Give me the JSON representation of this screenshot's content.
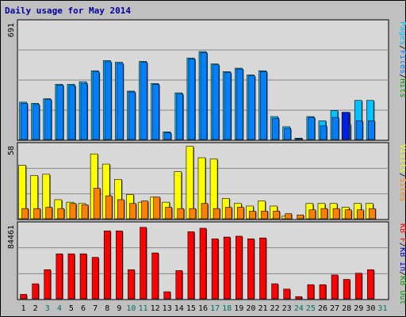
{
  "chart_data": {
    "type": "bar",
    "title": "Daily usage for May 2014",
    "colors": {
      "pages": "#0020e0",
      "files": "#0080ff",
      "hits": "#00c0ff",
      "visits": "#ffff00",
      "sites": "#ff8000",
      "kbin": "#0000cc",
      "kbout": "#00a000",
      "kbf": "#ff0000",
      "weekend": "#007060",
      "weekday": "#000000",
      "panel": "#c0c0c0",
      "bg": "#d8d8d8",
      "title": "#0000a0"
    },
    "days": [
      "1",
      "2",
      "3",
      "4",
      "5",
      "6",
      "7",
      "8",
      "9",
      "10",
      "11",
      "12",
      "13",
      "14",
      "15",
      "16",
      "17",
      "18",
      "19",
      "20",
      "21",
      "22",
      "23",
      "24",
      "25",
      "26",
      "27",
      "28",
      "29",
      "30",
      "31"
    ],
    "weekend_days": [
      "3",
      "4",
      "10",
      "11",
      "17",
      "18",
      "24",
      "25",
      "31"
    ],
    "panels": [
      {
        "id": "hits",
        "max_label": "691",
        "ymax": 691,
        "legend": [
          {
            "text": "Pages",
            "color_key": "hits"
          },
          {
            "text": "/",
            "color_key": "weekday"
          },
          {
            "text": "Files",
            "color_key": "files"
          },
          {
            "text": "/",
            "color_key": "weekday"
          },
          {
            "text": "Hits",
            "color_key": "kbout"
          }
        ],
        "series": [
          {
            "name": "Hits",
            "color_key": "hits",
            "values": [
              220,
              213,
              240,
              325,
              325,
              340,
              405,
              465,
              455,
              285,
              460,
              330,
              45,
              275,
              480,
              518,
              445,
              400,
              420,
              380,
              405,
              135,
              75,
              8,
              135,
              110,
              170,
              160,
              230,
              230,
              0
            ]
          },
          {
            "name": "Files",
            "color_key": "files",
            "values": [
              213,
              206,
              235,
              320,
              318,
              330,
              398,
              458,
              448,
              280,
              455,
              325,
              40,
              268,
              475,
              512,
              440,
              395,
              415,
              375,
              400,
              125,
              65,
              4,
              130,
              80,
              130,
              90,
              110,
              110,
              0
            ]
          },
          {
            "name": "Pages",
            "color_key": "pages",
            "values": [
              0,
              0,
              0,
              0,
              0,
              0,
              0,
              0,
              0,
              0,
              0,
              0,
              0,
              0,
              0,
              0,
              0,
              0,
              0,
              0,
              0,
              0,
              0,
              0,
              0,
              0,
              0,
              160,
              0,
              0,
              0
            ]
          }
        ]
      },
      {
        "id": "visits",
        "max_label": "58",
        "ymax": 58,
        "legend": [
          {
            "text": "Visits",
            "color_key": "visits"
          },
          {
            "text": "/",
            "color_key": "weekday"
          },
          {
            "text": "Sites",
            "color_key": "sites"
          }
        ],
        "series": [
          {
            "name": "Visits",
            "color_key": "visits",
            "values": [
              42,
              34,
              35,
              15,
              13,
              12,
              51,
              43,
              31,
              19,
              13,
              17,
              13,
              37,
              57,
              48,
              47,
              16,
              12,
              10,
              14,
              10,
              2,
              0,
              12,
              12,
              12,
              9,
              12,
              12,
              0
            ]
          },
          {
            "name": "Sites",
            "color_key": "sites",
            "values": [
              8,
              8,
              9,
              8,
              12,
              11,
              24,
              18,
              15,
              12,
              14,
              17,
              9,
              8,
              8,
              12,
              8,
              9,
              9,
              6,
              6,
              6,
              4,
              3,
              7,
              8,
              8,
              7,
              7,
              8,
              0
            ]
          }
        ]
      },
      {
        "id": "kbytes",
        "max_label": "84461",
        "ymax": 84461,
        "legend": [
          {
            "text": "KB F",
            "color_key": "kbf"
          },
          {
            "text": "/",
            "color_key": "weekday"
          },
          {
            "text": "KB In",
            "color_key": "kbin"
          },
          {
            "text": "/",
            "color_key": "weekday"
          },
          {
            "text": "KB Out",
            "color_key": "kbout"
          }
        ],
        "series": [
          {
            "name": "KB F",
            "color_key": "kbf",
            "values": [
              5000,
              17000,
              33000,
              51000,
              51000,
              51000,
              47000,
              77000,
              77000,
              33000,
              81000,
              52000,
              8000,
              32000,
              76000,
              80000,
              68000,
              70000,
              71000,
              68000,
              69000,
              17000,
              11000,
              2500,
              16000,
              16000,
              27000,
              22000,
              29000,
              33000,
              0
            ]
          }
        ]
      }
    ]
  }
}
